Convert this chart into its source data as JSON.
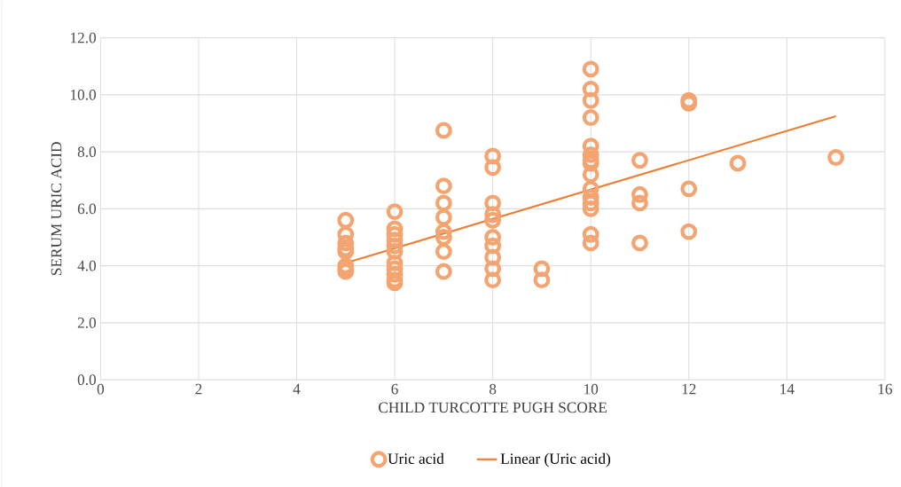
{
  "chart_data": {
    "type": "scatter",
    "xlabel": "CHILD TURCOTTE PUGH SCORE",
    "ylabel": "SERUM URIC ACID",
    "xlim": [
      0,
      16
    ],
    "xticks": [
      0,
      2,
      4,
      6,
      8,
      10,
      12,
      14,
      16
    ],
    "ylim": [
      0,
      12
    ],
    "yticks": [
      {
        "value": 0,
        "label": "0.0"
      },
      {
        "value": 2,
        "label": "2.0"
      },
      {
        "value": 4,
        "label": "4.0"
      },
      {
        "value": 6,
        "label": "6.0"
      },
      {
        "value": 8,
        "label": "8.0"
      },
      {
        "value": 10,
        "label": "10.0"
      },
      {
        "value": 12,
        "label": "12.0"
      }
    ],
    "grid": true,
    "legend": "bottom",
    "series": [
      {
        "name": "Uric acid",
        "marker": "circle",
        "color": "#f4a470",
        "x": [
          5,
          5,
          5,
          5,
          5,
          5,
          5,
          5,
          6,
          6,
          6,
          6,
          6,
          6,
          6,
          6,
          6,
          6,
          6,
          7,
          7,
          7,
          7,
          7,
          7,
          7,
          7,
          8,
          8,
          8,
          8,
          8,
          8,
          8,
          8,
          8,
          8,
          9,
          9,
          10,
          10,
          10,
          10,
          10,
          10,
          10,
          10,
          10,
          10,
          10,
          10,
          10,
          10,
          10,
          11,
          11,
          11,
          11,
          12,
          12,
          12,
          12,
          13,
          15
        ],
        "values": [
          5.6,
          5.1,
          4.8,
          4.6,
          4.5,
          4.0,
          3.9,
          3.8,
          5.9,
          5.3,
          5.1,
          4.9,
          4.7,
          4.5,
          4.1,
          3.9,
          3.7,
          3.5,
          3.4,
          8.75,
          6.8,
          6.2,
          5.7,
          5.2,
          5.0,
          4.5,
          3.8,
          7.85,
          7.45,
          6.2,
          5.8,
          5.6,
          5.0,
          4.7,
          4.3,
          3.9,
          3.5,
          3.9,
          3.5,
          10.9,
          10.2,
          9.8,
          9.2,
          8.2,
          7.9,
          7.7,
          7.6,
          7.2,
          6.7,
          6.4,
          6.2,
          6.0,
          5.1,
          4.8,
          7.7,
          6.5,
          6.2,
          4.8,
          9.8,
          9.7,
          6.7,
          5.2,
          7.6,
          7.8
        ]
      },
      {
        "name": "Linear (Uric acid)",
        "type": "line",
        "color": "#ed7d31",
        "x": [
          5,
          15
        ],
        "values": [
          4.1,
          9.25
        ]
      }
    ]
  }
}
